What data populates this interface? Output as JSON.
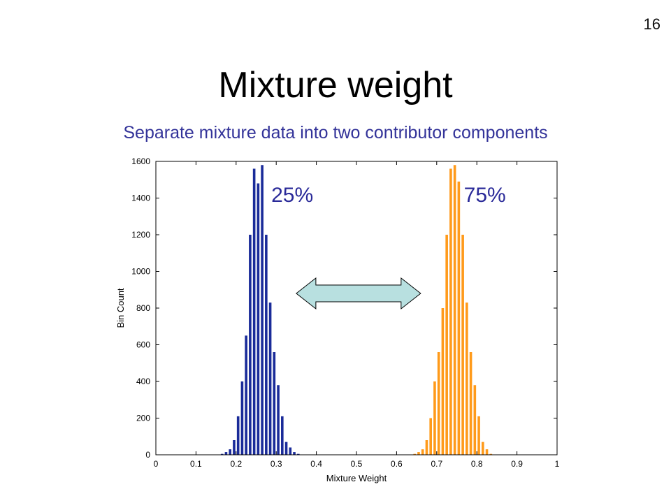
{
  "slide": {
    "number": "16",
    "title": "Mixture weight",
    "subtitle": "Separate mixture data into two contributor components"
  },
  "colors": {
    "subtitle": "#333399",
    "left_bars": "#1a2b99",
    "right_bars": "#ff9a1a",
    "arrow_fill": "#b8e0e0"
  },
  "chart_data": {
    "type": "bar",
    "xlabel": "Mixture Weight",
    "ylabel": "Bin Count",
    "xlim": [
      0,
      1
    ],
    "ylim": [
      0,
      1600
    ],
    "xticks": [
      0,
      0.1,
      0.2,
      0.3,
      0.4,
      0.5,
      0.6,
      0.7,
      0.8,
      0.9,
      1
    ],
    "xtick_labels": [
      "0",
      "0.1",
      "0.2",
      "0.3",
      "0.4",
      "0.5",
      "0.6",
      "0.7",
      "0.8",
      "0.9",
      "1"
    ],
    "yticks": [
      0,
      200,
      400,
      600,
      800,
      1000,
      1200,
      1400,
      1600
    ],
    "ytick_labels": [
      "0",
      "200",
      "400",
      "600",
      "800",
      "1000",
      "1200",
      "1400",
      "1600"
    ],
    "grid": false,
    "series": [
      {
        "color": "#1a2b99",
        "x": [
          0.165,
          0.175,
          0.185,
          0.195,
          0.205,
          0.215,
          0.225,
          0.235,
          0.245,
          0.255,
          0.265,
          0.275,
          0.285,
          0.295,
          0.305,
          0.315,
          0.325,
          0.335,
          0.345,
          0.355
        ],
        "values": [
          5,
          15,
          30,
          80,
          210,
          400,
          650,
          1200,
          1560,
          1480,
          1580,
          1200,
          830,
          560,
          380,
          210,
          70,
          40,
          15,
          5
        ]
      },
      {
        "color": "#ff9a1a",
        "x": [
          0.645,
          0.655,
          0.665,
          0.675,
          0.685,
          0.695,
          0.705,
          0.715,
          0.725,
          0.735,
          0.745,
          0.755,
          0.765,
          0.775,
          0.785,
          0.795,
          0.805,
          0.815,
          0.825,
          0.835
        ],
        "values": [
          5,
          15,
          30,
          80,
          200,
          400,
          560,
          800,
          1200,
          1560,
          1580,
          1490,
          1200,
          830,
          560,
          380,
          210,
          70,
          30,
          5
        ]
      }
    ],
    "annotations": [
      {
        "text": "25%",
        "x": 0.34,
        "y": 1380
      },
      {
        "text": "75%",
        "x": 0.82,
        "y": 1380
      }
    ],
    "arrow": {
      "type": "double-headed",
      "x_from": 0.35,
      "x_to": 0.66,
      "y": 880
    }
  }
}
